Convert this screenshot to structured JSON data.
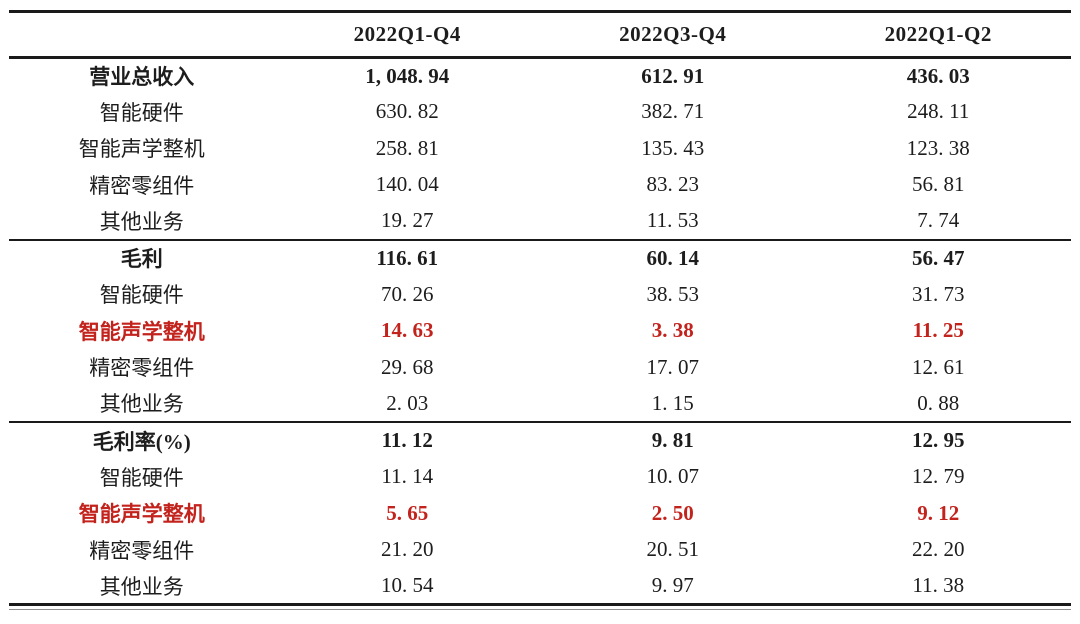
{
  "table": {
    "columns": [
      "",
      "2022Q1-Q4",
      "2022Q3-Q4",
      "2022Q1-Q2"
    ],
    "accent_color": "#c3231d",
    "sections": [
      {
        "header": {
          "label": "营业总收入",
          "values": [
            "1, 048. 94",
            "612. 91",
            "436. 03"
          ]
        },
        "rows": [
          {
            "label": "智能硬件",
            "values": [
              "630. 82",
              "382. 71",
              "248. 11"
            ],
            "highlight": false
          },
          {
            "label": "智能声学整机",
            "values": [
              "258. 81",
              "135. 43",
              "123. 38"
            ],
            "highlight": false
          },
          {
            "label": "精密零组件",
            "values": [
              "140. 04",
              "83. 23",
              "56. 81"
            ],
            "highlight": false
          },
          {
            "label": "其他业务",
            "values": [
              "19. 27",
              "11. 53",
              "7. 74"
            ],
            "highlight": false
          }
        ]
      },
      {
        "header": {
          "label": "毛利",
          "values": [
            "116. 61",
            "60. 14",
            "56. 47"
          ]
        },
        "rows": [
          {
            "label": "智能硬件",
            "values": [
              "70. 26",
              "38. 53",
              "31. 73"
            ],
            "highlight": false
          },
          {
            "label": "智能声学整机",
            "values": [
              "14. 63",
              "3. 38",
              "11. 25"
            ],
            "highlight": true
          },
          {
            "label": "精密零组件",
            "values": [
              "29. 68",
              "17. 07",
              "12. 61"
            ],
            "highlight": false
          },
          {
            "label": "其他业务",
            "values": [
              "2. 03",
              "1. 15",
              "0. 88"
            ],
            "highlight": false
          }
        ]
      },
      {
        "header": {
          "label": "毛利率(%)",
          "values": [
            "11. 12",
            "9. 81",
            "12. 95"
          ]
        },
        "rows": [
          {
            "label": "智能硬件",
            "values": [
              "11. 14",
              "10. 07",
              "12. 79"
            ],
            "highlight": false
          },
          {
            "label": "智能声学整机",
            "values": [
              "5. 65",
              "2. 50",
              "9. 12"
            ],
            "highlight": true
          },
          {
            "label": "精密零组件",
            "values": [
              "21. 20",
              "20. 51",
              "22. 20"
            ],
            "highlight": false
          },
          {
            "label": "其他业务",
            "values": [
              "10. 54",
              "9. 97",
              "11. 38"
            ],
            "highlight": false
          }
        ]
      }
    ]
  }
}
